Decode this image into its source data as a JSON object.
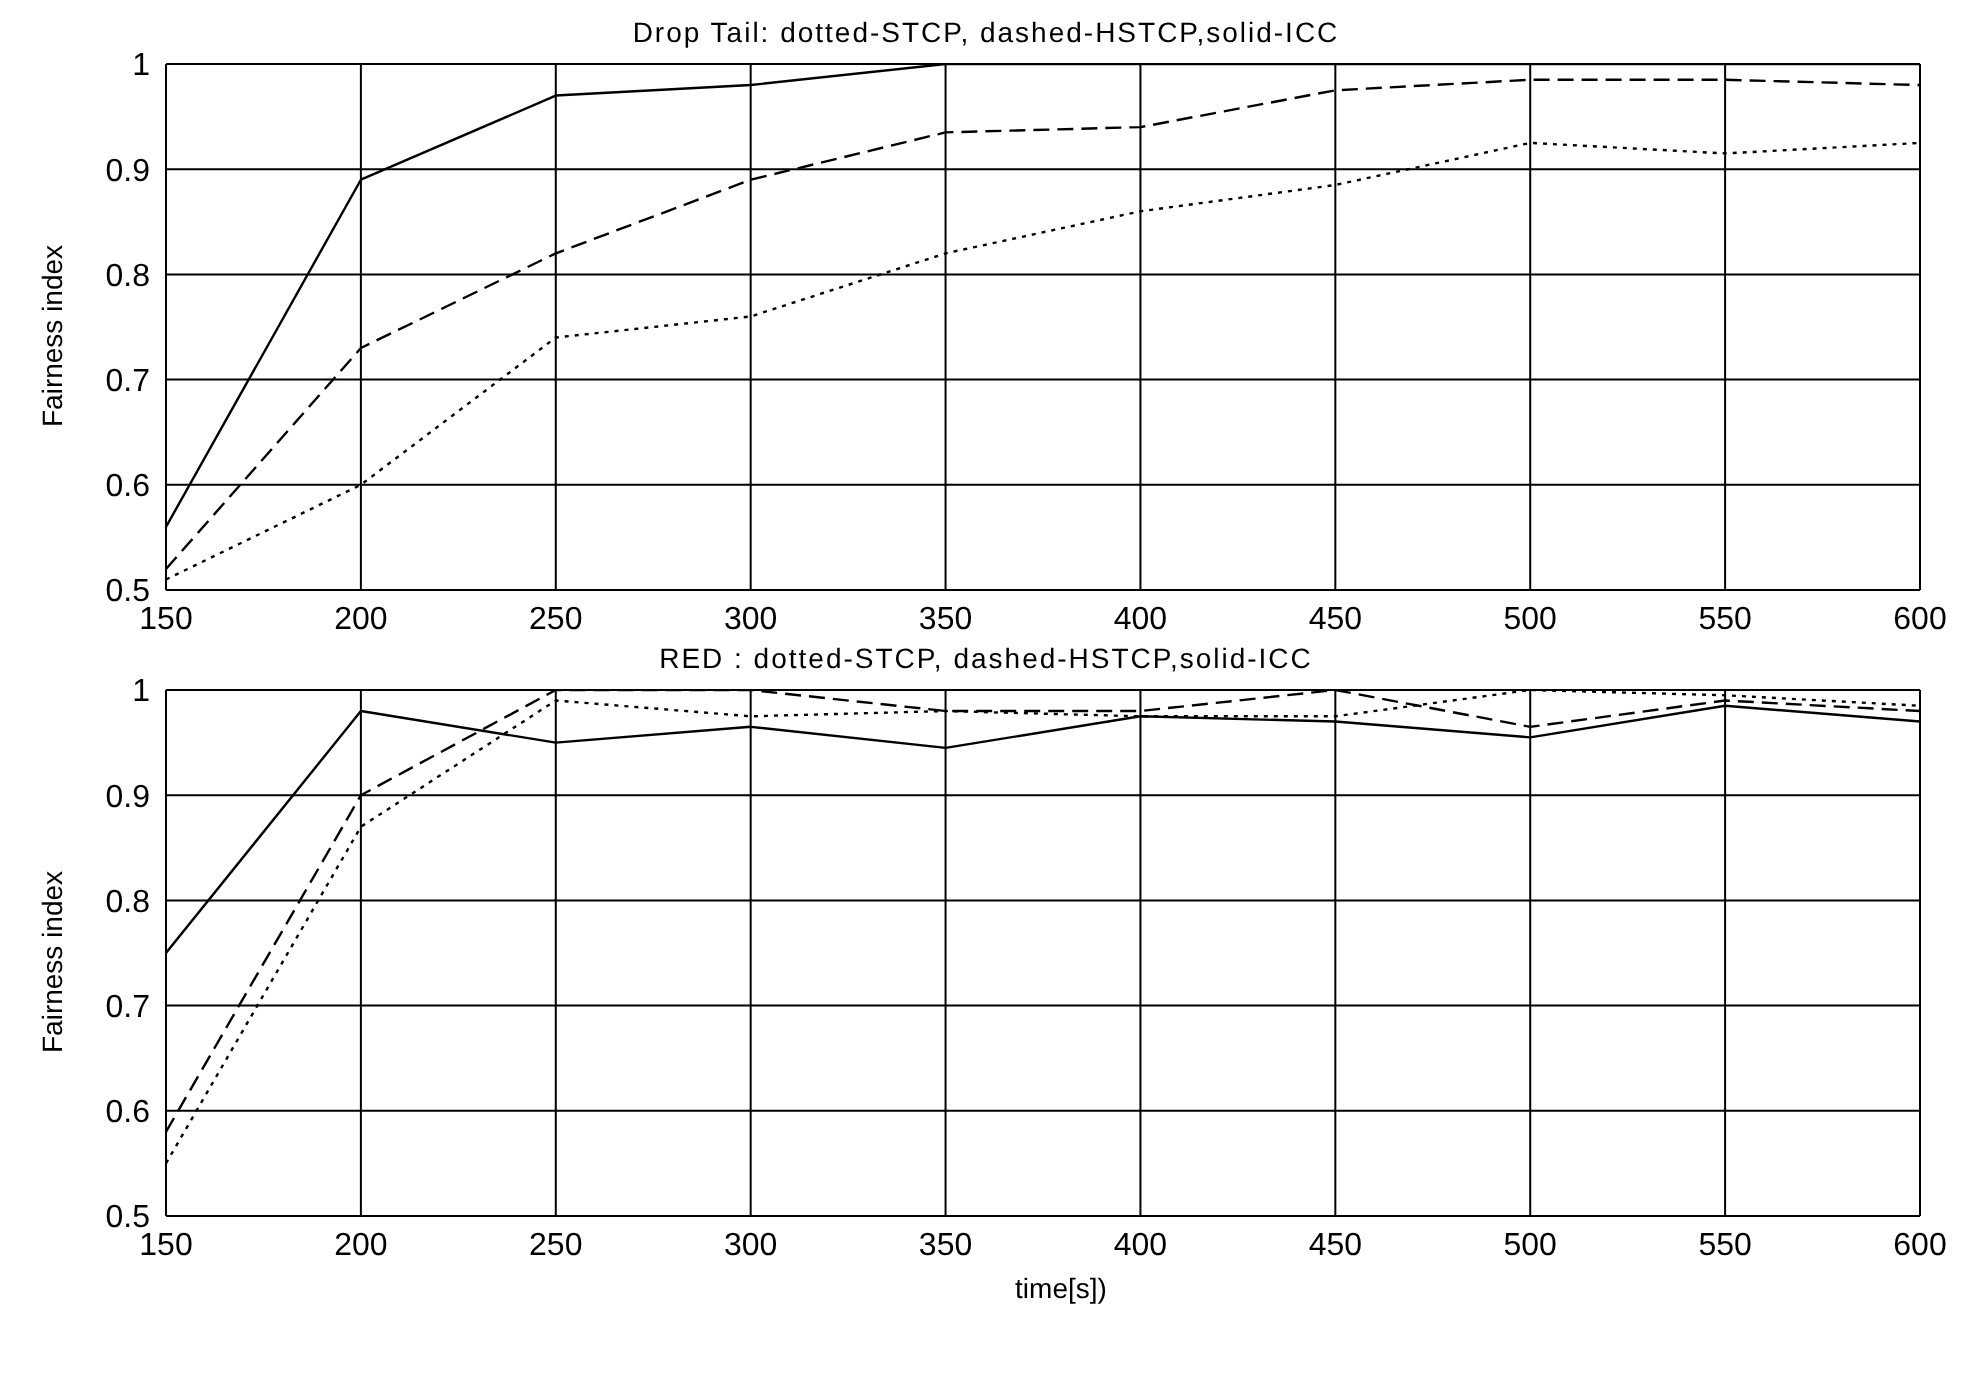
{
  "chart_data": [
    {
      "type": "line",
      "title": "Drop Tail: dotted-STCP, dashed-HSTCP,solid-ICC",
      "ylabel": "Fairness index",
      "x": [
        150,
        200,
        250,
        300,
        350,
        400,
        450,
        500,
        550,
        600
      ],
      "xlim": [
        150,
        600
      ],
      "xticks": [
        150,
        200,
        250,
        300,
        350,
        400,
        450,
        500,
        550,
        600
      ],
      "ylim": [
        0.5,
        1
      ],
      "yticks": [
        0.5,
        0.6,
        0.7,
        0.8,
        0.9,
        1
      ],
      "grid": true,
      "legend": false,
      "marker": "none",
      "series": [
        {
          "color": "#000000",
          "line_style": "solid",
          "values": [
            0.56,
            0.89,
            0.97,
            0.98,
            1.0,
            1.0,
            1.0,
            1.0,
            1.0,
            1.0
          ]
        },
        {
          "color": "#000000",
          "line_style": "dashed",
          "values": [
            0.52,
            0.73,
            0.82,
            0.89,
            0.935,
            0.94,
            0.975,
            0.985,
            0.985,
            0.98
          ]
        },
        {
          "color": "#000000",
          "line_style": "dotted",
          "values": [
            0.51,
            0.6,
            0.74,
            0.76,
            0.82,
            0.86,
            0.885,
            0.925,
            0.915,
            0.925
          ]
        }
      ]
    },
    {
      "type": "line",
      "title": "RED : dotted-STCP, dashed-HSTCP,solid-ICC",
      "xlabel": "time[s])",
      "ylabel": "Fairness index",
      "x": [
        150,
        200,
        250,
        300,
        350,
        400,
        450,
        500,
        550,
        600
      ],
      "xlim": [
        150,
        600
      ],
      "xticks": [
        150,
        200,
        250,
        300,
        350,
        400,
        450,
        500,
        550,
        600
      ],
      "ylim": [
        0.5,
        1
      ],
      "yticks": [
        0.5,
        0.6,
        0.7,
        0.8,
        0.9,
        1
      ],
      "grid": true,
      "legend": false,
      "marker": "none",
      "series": [
        {
          "color": "#000000",
          "line_style": "solid",
          "values": [
            0.75,
            0.98,
            0.95,
            0.965,
            0.945,
            0.975,
            0.97,
            0.955,
            0.985,
            0.97
          ]
        },
        {
          "color": "#000000",
          "line_style": "dashed",
          "values": [
            0.58,
            0.9,
            1.0,
            1.0,
            0.98,
            0.98,
            1.0,
            0.965,
            0.99,
            0.98
          ]
        },
        {
          "color": "#000000",
          "line_style": "dotted",
          "values": [
            0.55,
            0.87,
            0.99,
            0.975,
            0.98,
            0.975,
            0.975,
            1.0,
            0.995,
            0.985
          ]
        }
      ]
    }
  ]
}
